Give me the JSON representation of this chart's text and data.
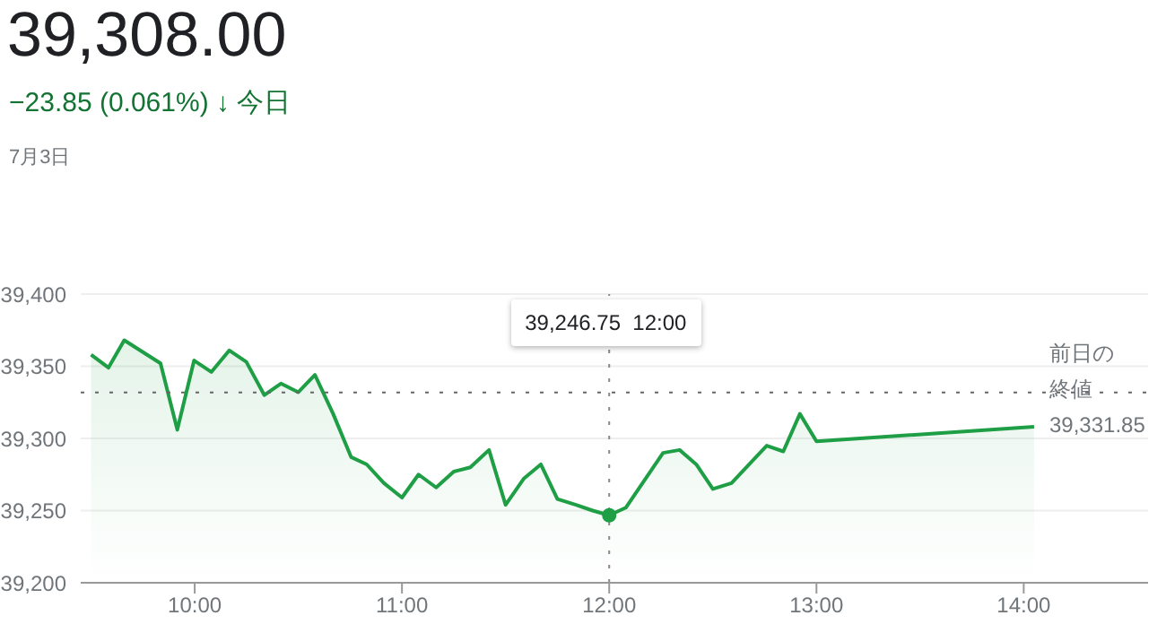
{
  "chart_data": {
    "type": "area",
    "title": "39,308.00",
    "subtitle": "−23.85 (0.061%) ↓ 今日",
    "annotations": [
      "7月3日",
      "39,246.75  12:00"
    ],
    "x": [
      9.5,
      9.584,
      9.66,
      9.835,
      9.916,
      9.997,
      10.08,
      10.167,
      10.249,
      10.336,
      10.416,
      10.5,
      10.58,
      10.668,
      10.755,
      10.83,
      10.913,
      11.0,
      11.08,
      11.165,
      11.25,
      11.33,
      11.42,
      11.5,
      11.587,
      11.67,
      11.75,
      11.84,
      11.92,
      12.0,
      12.08,
      12.26,
      12.34,
      12.42,
      12.5,
      12.59,
      12.76,
      12.84,
      12.92,
      13.0,
      14.05
    ],
    "series": [
      {
        "color": "#1e9e45",
        "values": [
          39358,
          39349,
          39368,
          39352,
          39306,
          39354,
          39346,
          39361,
          39353,
          39330,
          39338,
          39332,
          39344,
          39317,
          39287,
          39282,
          39269,
          39259,
          39275,
          39266,
          39277,
          39280,
          39292,
          39254,
          39272,
          39282,
          39258,
          39254,
          39250,
          39246.75,
          39252,
          39290,
          39292,
          39282,
          39265,
          39269,
          39295,
          39291,
          39317,
          39298,
          39308
        ]
      }
    ],
    "xlim": [
      9.45,
      14.6
    ],
    "xticks": [
      {
        "value": 10,
        "label": "10:00"
      },
      {
        "value": 11,
        "label": "11:00"
      },
      {
        "value": 12,
        "label": "12:00"
      },
      {
        "value": 13,
        "label": "13:00"
      },
      {
        "value": 14,
        "label": "14:00"
      }
    ],
    "ylim": [
      39200,
      39400
    ],
    "yticks": [
      {
        "value": 39200,
        "label": "39,200"
      },
      {
        "value": 39250,
        "label": "39,250"
      },
      {
        "value": 39300,
        "label": "39,300"
      },
      {
        "value": 39350,
        "label": "39,350"
      },
      {
        "value": 39400,
        "label": "39,400"
      }
    ],
    "grid": "y",
    "marker": "none",
    "line_style": "solid",
    "ref_lines": [
      {
        "axis": "y",
        "value": 39331.85,
        "label": "前日の終値 39,331.85",
        "line_style": "dotted",
        "color": "#666666"
      },
      {
        "axis": "x",
        "value": 12,
        "line_style": "dotted",
        "color": "#888888"
      }
    ]
  }
}
